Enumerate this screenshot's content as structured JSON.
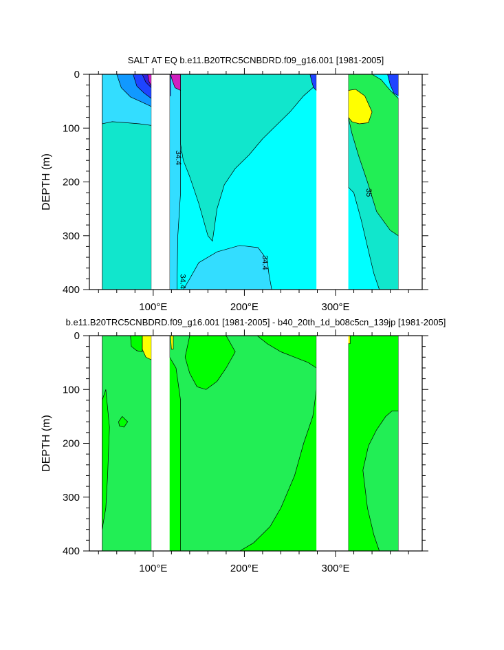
{
  "chart_data": [
    {
      "type": "contour",
      "title": "SALT AT EQ b.e11.B20TRC5CNBDRD.f09_g16.001 [1981-2005]",
      "xlabel": "",
      "ylabel": "DEPTH (m)",
      "xlim": [
        30,
        395
      ],
      "ylim": [
        400,
        0
      ],
      "y_reversed": true,
      "x_tick_values": [
        100,
        200,
        300
      ],
      "x_tick_labels": [
        "100°E",
        "200°E",
        "300°E"
      ],
      "y_ticks": [
        0,
        100,
        200,
        300,
        400
      ],
      "y_tick_labels": [
        "0",
        "100",
        "200",
        "300",
        "400"
      ],
      "land_gaps_x": [
        [
          98,
          118
        ],
        [
          279,
          314
        ],
        [
          369,
          395
        ]
      ],
      "background_color": "#00ffff",
      "regions": [
        {
          "name": "light blue lower pool",
          "color": "#33ddff",
          "pts": [
            [
              133,
              400
            ],
            [
              140,
              380
            ],
            [
              150,
              350
            ],
            [
              170,
              330
            ],
            [
              195,
              318
            ],
            [
              215,
              322
            ],
            [
              225,
              345
            ],
            [
              227,
              372
            ],
            [
              230,
              400
            ]
          ]
        },
        {
          "name": "light blue strip near 125E",
          "color": "#33ddff",
          "pts": [
            [
              118,
              0
            ],
            [
              130,
              0
            ],
            [
              130,
              220
            ],
            [
              127,
              300
            ],
            [
              126,
              400
            ],
            [
              118,
              400
            ]
          ]
        },
        {
          "name": "turquoise western Indian",
          "color": "#11e6cc",
          "pts": [
            [
              44,
              0
            ],
            [
              98,
              0
            ],
            [
              98,
              400
            ],
            [
              44,
              400
            ]
          ]
        },
        {
          "name": "light blue western Indian surface",
          "color": "#33ddff",
          "pts": [
            [
              44,
              0
            ],
            [
              98,
              0
            ],
            [
              98,
              95
            ],
            [
              85,
              92
            ],
            [
              70,
              90
            ],
            [
              55,
              88
            ],
            [
              44,
              92
            ]
          ]
        },
        {
          "name": "mid blue western Indian",
          "color": "#1199ff",
          "pts": [
            [
              55,
              0
            ],
            [
              98,
              0
            ],
            [
              98,
              60
            ],
            [
              88,
              52
            ],
            [
              75,
              42
            ],
            [
              65,
              25
            ],
            [
              60,
              0
            ]
          ]
        },
        {
          "name": "blue western Indian",
          "color": "#1e44ff",
          "pts": [
            [
              72,
              0
            ],
            [
              98,
              0
            ],
            [
              98,
              45
            ],
            [
              90,
              35
            ],
            [
              82,
              22
            ],
            [
              78,
              0
            ]
          ]
        },
        {
          "name": "dark blue western Indian",
          "color": "#3020dd",
          "pts": [
            [
              85,
              0
            ],
            [
              98,
              0
            ],
            [
              98,
              25
            ],
            [
              92,
              15
            ],
            [
              88,
              0
            ]
          ]
        },
        {
          "name": "magenta western Indian",
          "color": "#d020c0",
          "pts": [
            [
              93,
              0
            ],
            [
              98,
              0
            ],
            [
              98,
              22
            ],
            [
              95,
              12
            ],
            [
              94,
              0
            ]
          ]
        },
        {
          "name": "turquoise central Pacific",
          "color": "#11e6cc",
          "pts": [
            [
              160,
              0
            ],
            [
              195,
              0
            ],
            [
              225,
              0
            ],
            [
              245,
              0
            ],
            [
              255,
              0
            ],
            [
              270,
              0
            ],
            [
              279,
              0
            ],
            [
              279,
              15
            ],
            [
              275,
              25
            ],
            [
              265,
              40
            ],
            [
              250,
              70
            ],
            [
              235,
              95
            ],
            [
              220,
              120
            ],
            [
              205,
              150
            ],
            [
              190,
              175
            ],
            [
              178,
              205
            ],
            [
              170,
              250
            ],
            [
              165,
              310
            ],
            [
              160,
              300
            ],
            [
              150,
              240
            ],
            [
              140,
              190
            ],
            [
              133,
              160
            ],
            [
              130,
              130
            ],
            [
              130,
              0
            ]
          ]
        },
        {
          "name": "blue eastern Pacific wedge",
          "color": "#1e44ff",
          "pts": [
            [
              272,
              0
            ],
            [
              279,
              0
            ],
            [
              279,
              30
            ],
            [
              276,
              25
            ],
            [
              274,
              15
            ]
          ]
        },
        {
          "name": "turquoise Atlantic",
          "color": "#11e6cc",
          "pts": [
            [
              314,
              40
            ],
            [
              320,
              35
            ],
            [
              330,
              45
            ],
            [
              345,
              70
            ],
            [
              355,
              100
            ],
            [
              360,
              150
            ],
            [
              369,
              180
            ],
            [
              369,
              400
            ],
            [
              348,
              400
            ],
            [
              342,
              370
            ],
            [
              335,
              320
            ],
            [
              328,
              270
            ],
            [
              320,
              220
            ],
            [
              314,
              210
            ]
          ]
        },
        {
          "name": "green Atlantic",
          "color": "#22ee55",
          "pts": [
            [
              314,
              0
            ],
            [
              340,
              0
            ],
            [
              350,
              10
            ],
            [
              360,
              30
            ],
            [
              369,
              45
            ],
            [
              369,
              300
            ],
            [
              360,
              290
            ],
            [
              345,
              255
            ],
            [
              335,
              200
            ],
            [
              325,
              150
            ],
            [
              318,
              110
            ],
            [
              314,
              80
            ]
          ]
        },
        {
          "name": "yellow Atlantic",
          "color": "#ffff00",
          "pts": [
            [
              314,
              30
            ],
            [
              322,
              28
            ],
            [
              332,
              40
            ],
            [
              340,
              70
            ],
            [
              336,
              90
            ],
            [
              326,
              92
            ],
            [
              318,
              88
            ],
            [
              314,
              80
            ]
          ]
        },
        {
          "name": "blue Atlantic east",
          "color": "#1e44ff",
          "pts": [
            [
              357,
              0
            ],
            [
              369,
              0
            ],
            [
              369,
              40
            ],
            [
              364,
              35
            ],
            [
              360,
              20
            ]
          ]
        },
        {
          "name": "magenta west Pacific",
          "color": "#d020c0",
          "pts": [
            [
              119,
              0
            ],
            [
              130,
              0
            ],
            [
              130,
              30
            ],
            [
              124,
              25
            ],
            [
              121,
              12
            ]
          ]
        },
        {
          "name": "blue west Pacific",
          "color": "#1e44ff",
          "pts": [
            [
              118,
              0
            ],
            [
              119,
              0
            ],
            [
              119,
              40
            ],
            [
              118,
              40
            ]
          ]
        }
      ],
      "contour_labels": [
        {
          "text": "34.4",
          "x": 125,
          "y": 155,
          "rotate": 90
        },
        {
          "text": "35",
          "x": 334,
          "y": 220,
          "rotate": 90
        },
        {
          "text": "34.4",
          "x": 220,
          "y": 350,
          "rotate": 90
        },
        {
          "text": "34.4",
          "x": 130,
          "y": 385,
          "rotate": 90
        }
      ]
    },
    {
      "type": "contour",
      "title": "b.e11.B20TRC5CNBDRD.f09_g16.001 [1981-2005] - b40_20th_1d_b08c5cn_139jp [1981-2005]",
      "xlabel": "",
      "ylabel": "DEPTH (m)",
      "xlim": [
        30,
        395
      ],
      "ylim": [
        400,
        0
      ],
      "y_reversed": true,
      "x_tick_values": [
        100,
        200,
        300
      ],
      "x_tick_labels": [
        "100°E",
        "200°E",
        "300°E"
      ],
      "y_ticks": [
        0,
        100,
        200,
        300,
        400
      ],
      "y_tick_labels": [
        "0",
        "100",
        "200",
        "300",
        "400"
      ],
      "land_gaps_x": [
        [
          98,
          118
        ],
        [
          279,
          314
        ],
        [
          369,
          395
        ]
      ],
      "background_color": "#00ff00",
      "regions": [
        {
          "name": "green western Indian",
          "color": "#22ee55",
          "pts": [
            [
              44,
              0
            ],
            [
              98,
              0
            ],
            [
              98,
              400
            ],
            [
              44,
              400
            ]
          ]
        },
        {
          "name": "light green western Indian",
          "color": "#00ff00",
          "pts": [
            [
              44,
              120
            ],
            [
              48,
              100
            ],
            [
              52,
              170
            ],
            [
              50,
              260
            ],
            [
              48,
              320
            ],
            [
              44,
              360
            ]
          ]
        },
        {
          "name": "light green blob",
          "color": "#00ff00",
          "pts": [
            [
              62,
              160
            ],
            [
              66,
              150
            ],
            [
              72,
              160
            ],
            [
              68,
              170
            ],
            [
              63,
              168
            ]
          ]
        },
        {
          "name": "yellow western Indian",
          "color": "#ffff00",
          "pts": [
            [
              88,
              0
            ],
            [
              98,
              0
            ],
            [
              98,
              45
            ],
            [
              92,
              40
            ],
            [
              88,
              25
            ]
          ]
        },
        {
          "name": "light green western Indian corner",
          "color": "#00ff00",
          "pts": [
            [
              75,
              0
            ],
            [
              88,
              0
            ],
            [
              88,
              30
            ],
            [
              82,
              28
            ],
            [
              76,
              20
            ]
          ]
        },
        {
          "name": "green central Pacific",
          "color": "#22ee55",
          "pts": [
            [
              118,
              0
            ],
            [
              279,
              0
            ],
            [
              279,
              100
            ],
            [
              275,
              150
            ],
            [
              265,
              200
            ],
            [
              255,
              260
            ],
            [
              240,
              320
            ],
            [
              228,
              355
            ],
            [
              210,
              385
            ],
            [
              195,
              400
            ],
            [
              130,
              400
            ],
            [
              130,
              120
            ],
            [
              125,
              60
            ],
            [
              118,
              40
            ]
          ]
        },
        {
          "name": "light green west Pacific surface",
          "color": "#00ff00",
          "pts": [
            [
              140,
              0
            ],
            [
              165,
              0
            ],
            [
              180,
              0
            ],
            [
              190,
              30
            ],
            [
              180,
              60
            ],
            [
              170,
              85
            ],
            [
              158,
              100
            ],
            [
              148,
              95
            ],
            [
              140,
              70
            ],
            [
              135,
              40
            ]
          ]
        },
        {
          "name": "light green eastern Pacific",
          "color": "#00ff00",
          "pts": [
            [
              214,
              0
            ],
            [
              250,
              0
            ],
            [
              279,
              0
            ],
            [
              279,
              60
            ],
            [
              270,
              50
            ],
            [
              255,
              40
            ],
            [
              240,
              30
            ],
            [
              225,
              15
            ]
          ]
        },
        {
          "name": "yellow west Pacific",
          "color": "#ffff00",
          "pts": [
            [
              119,
              0
            ],
            [
              122,
              0
            ],
            [
              122,
              25
            ],
            [
              120,
              25
            ]
          ]
        },
        {
          "name": "light green Atlantic",
          "color": "#00ff00",
          "pts": [
            [
              314,
              0
            ],
            [
              369,
              0
            ],
            [
              369,
              400
            ],
            [
              314,
              400
            ]
          ]
        },
        {
          "name": "green Atlantic pocket",
          "color": "#22ee55",
          "pts": [
            [
              330,
              250
            ],
            [
              336,
              205
            ],
            [
              345,
              175
            ],
            [
              355,
              150
            ],
            [
              362,
              140
            ],
            [
              369,
              140
            ],
            [
              369,
              400
            ],
            [
              348,
              400
            ],
            [
              342,
              370
            ],
            [
              335,
              320
            ]
          ]
        },
        {
          "name": "yellow Atlantic sliver",
          "color": "#ffff00",
          "pts": [
            [
              313,
              0
            ],
            [
              316,
              0
            ],
            [
              316,
              15
            ],
            [
              313,
              15
            ]
          ]
        }
      ],
      "contour_labels": []
    }
  ]
}
